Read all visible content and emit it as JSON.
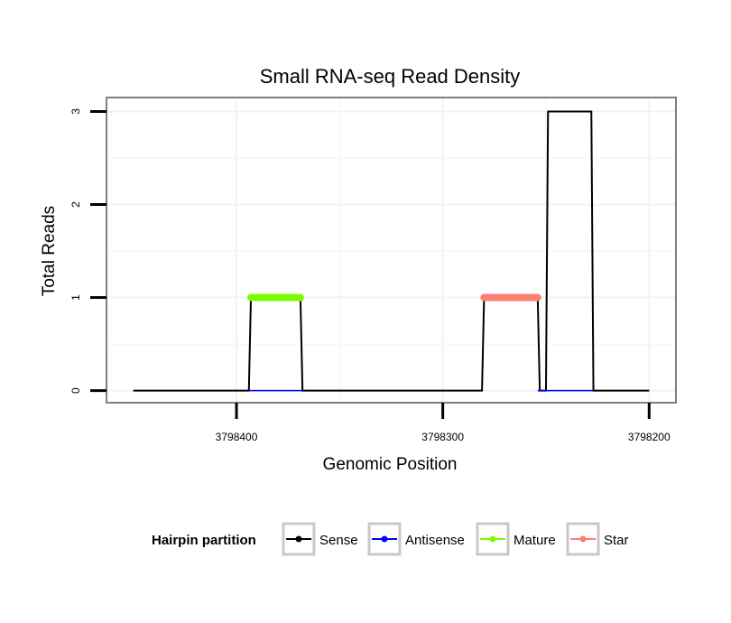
{
  "chart_data": {
    "type": "line",
    "title": "Small RNA-seq Read Density",
    "xlabel": "Genomic Position",
    "ylabel": "Total Reads",
    "x_reversed": true,
    "xlim": [
      3798463,
      3798187
    ],
    "ylim": [
      -0.13,
      3.15
    ],
    "x_ticks": [
      3798400,
      3798300,
      3798200
    ],
    "x_tick_labels": [
      "3798400",
      "3798300",
      "3798200"
    ],
    "y_ticks": [
      0,
      1,
      2,
      3
    ],
    "y_tick_labels": [
      "0",
      "1",
      "2",
      "3"
    ],
    "grid": true,
    "legend": {
      "title": "Hairpin partition",
      "position": "bottom",
      "entries": [
        {
          "key": "sense",
          "label": "Sense",
          "color": "#000000"
        },
        {
          "key": "antisense",
          "label": "Antisense",
          "color": "#0000ff"
        },
        {
          "key": "mature",
          "label": "Mature",
          "color": "#7cfc00"
        },
        {
          "key": "star",
          "label": "Star",
          "color": "#fa8072"
        }
      ]
    },
    "series": [
      {
        "name": "Sense",
        "color": "#000000",
        "line_width": 2,
        "x": [
          3798450,
          3798394,
          3798393,
          3798369,
          3798368,
          3798281,
          3798280,
          3798254,
          3798253,
          3798250,
          3798249,
          3798228,
          3798227,
          3798200
        ],
        "y": [
          0,
          0,
          1,
          1,
          0,
          0,
          1,
          1,
          0,
          0,
          3,
          3,
          0,
          0
        ]
      },
      {
        "name": "Antisense",
        "color": "#0000ff",
        "line_width": 1.5,
        "segments": [
          {
            "x": [
              3798394,
              3798368
            ],
            "y": [
              0,
              0
            ]
          },
          {
            "x": [
              3798254,
              3798227
            ],
            "y": [
              0,
              0
            ]
          }
        ]
      },
      {
        "name": "Mature",
        "color": "#7cfc00",
        "line_width": 8,
        "x": [
          3798393,
          3798369
        ],
        "y": [
          1,
          1
        ]
      },
      {
        "name": "Star",
        "color": "#fa8072",
        "line_width": 8,
        "x": [
          3798280,
          3798254
        ],
        "y": [
          1,
          1
        ]
      }
    ]
  }
}
